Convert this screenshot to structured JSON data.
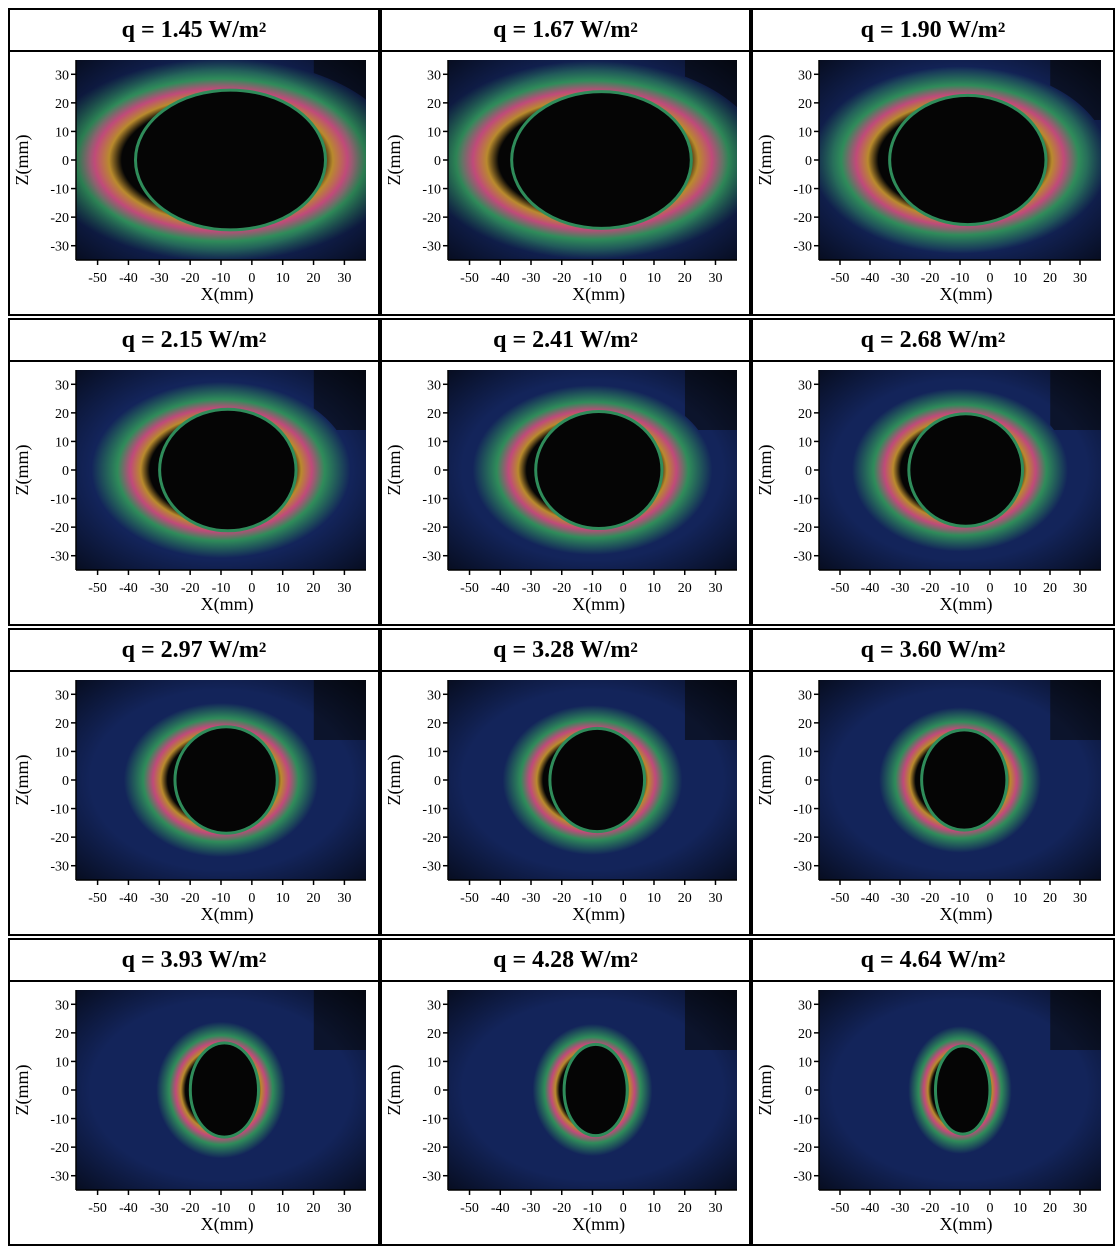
{
  "figure": {
    "axes": {
      "xlabel": "X(mm)",
      "ylabel": "Z(mm)",
      "xticks": [
        "-50",
        "-40",
        "-30",
        "-20",
        "-10",
        "0",
        "10",
        "20",
        "30"
      ],
      "yticks": [
        "30",
        "20",
        "10",
        "0",
        "-10",
        "-20",
        "-30"
      ],
      "xlim": [
        -57,
        37
      ],
      "ylim": [
        -35,
        35
      ]
    },
    "colors": {
      "background": "#13245a",
      "core": "#050505",
      "ring_inner": "#b98a2d",
      "ring_mid": "#c04a7a",
      "ring_outer": "#2f8c5a",
      "frame": "#000000"
    },
    "panels": [
      {
        "q_label": "q = 1.45 W/m",
        "sup": "2",
        "heat_flux": 1.45,
        "core_rx": 0.78,
        "core_ry": 0.92
      },
      {
        "q_label": "q = 1.67 W/m",
        "sup": "2",
        "heat_flux": 1.67,
        "core_rx": 0.74,
        "core_ry": 0.9
      },
      {
        "q_label": "q = 1.90 W/m",
        "sup": "2",
        "heat_flux": 1.9,
        "core_rx": 0.66,
        "core_ry": 0.85
      },
      {
        "q_label": "q = 2.15 W/m",
        "sup": "2",
        "heat_flux": 2.15,
        "core_rx": 0.56,
        "core_ry": 0.8
      },
      {
        "q_label": "q = 2.41 W/m",
        "sup": "2",
        "heat_flux": 2.41,
        "core_rx": 0.52,
        "core_ry": 0.77
      },
      {
        "q_label": "q = 2.68 W/m",
        "sup": "2",
        "heat_flux": 2.68,
        "core_rx": 0.48,
        "core_ry": 0.74
      },
      {
        "q_label": "q = 2.97 W/m",
        "sup": "2",
        "heat_flux": 2.97,
        "core_rx": 0.42,
        "core_ry": 0.7
      },
      {
        "q_label": "q = 3.28 W/m",
        "sup": "2",
        "heat_flux": 3.28,
        "core_rx": 0.39,
        "core_ry": 0.68
      },
      {
        "q_label": "q = 3.60 W/m",
        "sup": "2",
        "heat_flux": 3.6,
        "core_rx": 0.36,
        "core_ry": 0.66
      },
      {
        "q_label": "q = 3.93 W/m",
        "sup": "2",
        "heat_flux": 3.93,
        "core_rx": 0.28,
        "core_ry": 0.62
      },
      {
        "q_label": "q = 4.28 W/m",
        "sup": "2",
        "heat_flux": 4.28,
        "core_rx": 0.26,
        "core_ry": 0.6
      },
      {
        "q_label": "q = 4.64 W/m",
        "sup": "2",
        "heat_flux": 4.64,
        "core_rx": 0.23,
        "core_ry": 0.58
      }
    ]
  }
}
